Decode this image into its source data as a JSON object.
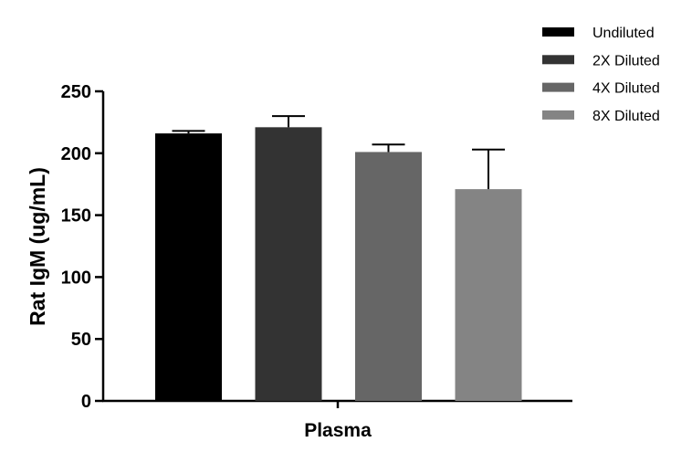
{
  "chart_data": {
    "type": "bar",
    "categories": [
      "Plasma"
    ],
    "series": [
      {
        "name": "Undiluted",
        "value": 216,
        "error": 2,
        "color": "#000000"
      },
      {
        "name": "2X Diluted",
        "value": 221,
        "error": 9,
        "color": "#333333"
      },
      {
        "name": "4X Diluted",
        "value": 201,
        "error": 6,
        "color": "#666666"
      },
      {
        "name": "8X Diluted",
        "value": 171,
        "error": 32,
        "color": "#848484"
      }
    ],
    "title": "",
    "xlabel": "Plasma",
    "ylabel": "Rat IgM (ug/mL)",
    "ylim": [
      0,
      250
    ],
    "yticks": [
      "0",
      "50",
      "100",
      "150",
      "200",
      "250"
    ],
    "grid": false,
    "legend_position": "top-right",
    "error_bars": "upper"
  }
}
